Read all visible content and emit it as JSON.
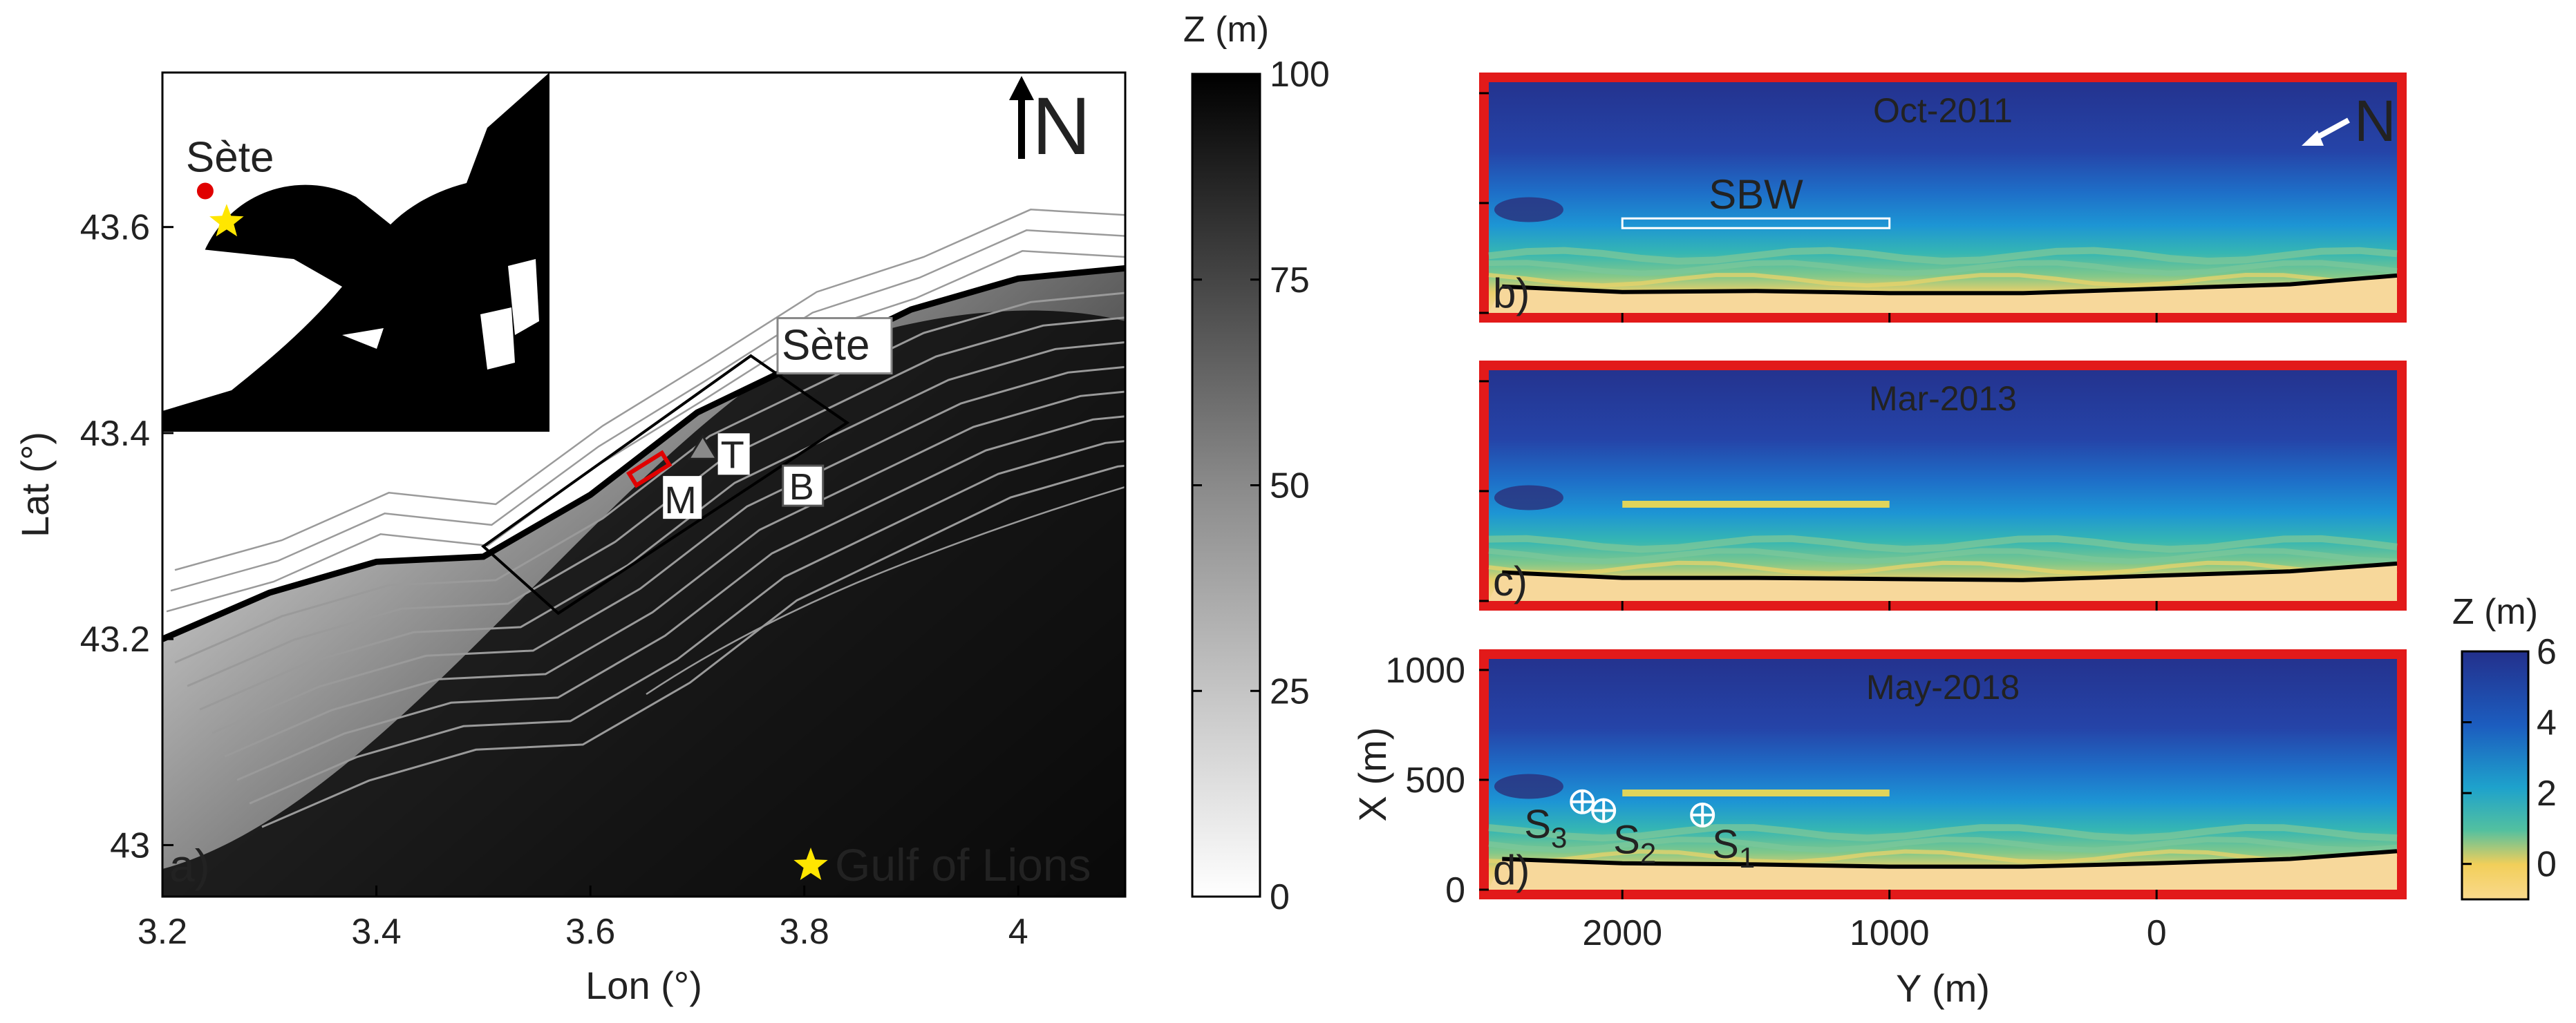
{
  "chart_data": [
    {
      "panel": "a)",
      "type": "heatmap",
      "title": "",
      "xlabel": "Lon (°)",
      "ylabel": "Lat (°)",
      "xlim": [
        3.2,
        4.1
      ],
      "ylim": [
        42.95,
        43.75
      ],
      "x_ticks": [
        "3.2",
        "3.4",
        "3.6",
        "3.8",
        "4"
      ],
      "y_ticks": [
        "43",
        "43.2",
        "43.4",
        "43.6"
      ],
      "colorbar": {
        "title": "Z (m)",
        "range": [
          0,
          100
        ],
        "ticks": [
          "0",
          "25",
          "50",
          "75",
          "100"
        ]
      },
      "annotations": {
        "inset_city": "Sète",
        "box_city": "Sète",
        "label_T": "T",
        "label_M": "M",
        "label_B": "B",
        "north": "N",
        "legend_star": "Gulf of Lions"
      },
      "coastline": [
        [
          3.2,
          43.2
        ],
        [
          3.3,
          43.245
        ],
        [
          3.4,
          43.275
        ],
        [
          3.5,
          43.28
        ],
        [
          3.6,
          43.34
        ],
        [
          3.7,
          43.42
        ],
        [
          3.8,
          43.47
        ],
        [
          3.9,
          43.52
        ],
        [
          4.0,
          43.55
        ],
        [
          4.1,
          43.56
        ]
      ],
      "study_box": [
        [
          3.5,
          43.29
        ],
        [
          3.75,
          43.475
        ],
        [
          3.84,
          43.41
        ],
        [
          3.57,
          43.225
        ]
      ],
      "colors": {
        "contour": "#9a9a9a",
        "marker": "#e00000",
        "star": "#ffe600"
      }
    },
    {
      "panel": "b)",
      "type": "heatmap",
      "title": "Oct-2011",
      "xlabel": "Y (m)",
      "ylabel": "X (m)",
      "xlim": [
        2500,
        -900
      ],
      "ylim": [
        0,
        1050
      ],
      "annotations": {
        "structure": "SBW",
        "north": "N"
      },
      "shoreline": [
        [
          2450,
          120
        ],
        [
          2000,
          95
        ],
        [
          1500,
          100
        ],
        [
          1000,
          90
        ],
        [
          500,
          90
        ],
        [
          0,
          110
        ],
        [
          -500,
          130
        ],
        [
          -900,
          170
        ]
      ]
    },
    {
      "panel": "c)",
      "type": "heatmap",
      "title": "Mar-2013",
      "xlabel": "Y (m)",
      "ylabel": "X (m)",
      "xlim": [
        2500,
        -900
      ],
      "ylim": [
        0,
        1050
      ],
      "shoreline": [
        [
          2450,
          130
        ],
        [
          2000,
          105
        ],
        [
          1500,
          105
        ],
        [
          1000,
          100
        ],
        [
          500,
          95
        ],
        [
          0,
          115
        ],
        [
          -500,
          135
        ],
        [
          -900,
          170
        ]
      ]
    },
    {
      "panel": "d)",
      "type": "heatmap",
      "title": "May-2018",
      "xlabel": "Y (m)",
      "ylabel": "X (m)",
      "xlim": [
        2500,
        -900
      ],
      "ylim": [
        0,
        1050
      ],
      "x_ticks": [
        "2000",
        "1000",
        "0"
      ],
      "y_ticks": [
        "0",
        "500",
        "1000"
      ],
      "colorbar": {
        "title": "Z (m)",
        "range": [
          -1,
          6
        ],
        "ticks": [
          "0",
          "2",
          "4",
          "6"
        ]
      },
      "sensors": [
        {
          "name": "S",
          "sub": "1",
          "y": 1700,
          "x": 340
        },
        {
          "name": "S",
          "sub": "2",
          "y": 2070,
          "x": 360
        },
        {
          "name": "S",
          "sub": "3",
          "y": 2150,
          "x": 400
        }
      ],
      "shoreline": [
        [
          2450,
          140
        ],
        [
          2000,
          120
        ],
        [
          1500,
          115
        ],
        [
          1000,
          105
        ],
        [
          500,
          105
        ],
        [
          0,
          120
        ],
        [
          -500,
          140
        ],
        [
          -900,
          175
        ]
      ]
    }
  ]
}
